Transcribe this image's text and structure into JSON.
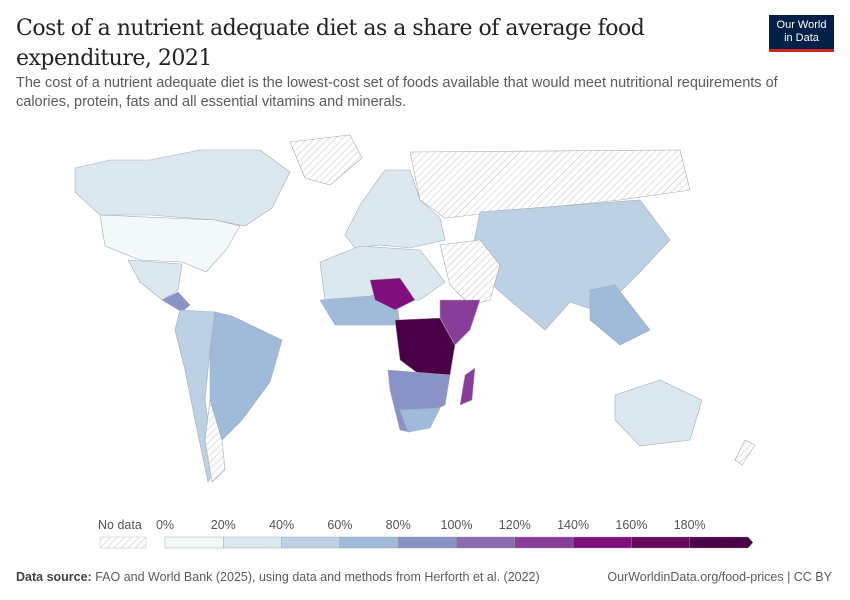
{
  "header": {
    "title": "Cost of a nutrient adequate diet as a share of average food expenditure, 2021",
    "subtitle": "The cost of a nutrient adequate diet is the lowest-cost set of foods available that would meet nutritional requirements of calories, protein, fats and all essential vitamins and minerals.",
    "logo_line1": "Our World",
    "logo_line2": "in Data"
  },
  "legend": {
    "no_data_label": "No data",
    "ticks": [
      "0%",
      "20%",
      "40%",
      "60%",
      "80%",
      "100%",
      "120%",
      "140%",
      "160%",
      "180%"
    ],
    "bins": [
      {
        "range": "0-20%",
        "color": "#f3f8f9"
      },
      {
        "range": "20-40%",
        "color": "#dce8f0"
      },
      {
        "range": "40-60%",
        "color": "#bdd1e4"
      },
      {
        "range": "60-80%",
        "color": "#9fbbd9"
      },
      {
        "range": "80-100%",
        "color": "#8a93c5"
      },
      {
        "range": "100-120%",
        "color": "#8d69ad"
      },
      {
        "range": "120-140%",
        "color": "#883d98"
      },
      {
        "range": "140-160%",
        "color": "#7f0f7c"
      },
      {
        "range": "160-180%",
        "color": "#66095b"
      },
      {
        "range": "180%+",
        "color": "#4a0046"
      }
    ]
  },
  "footer": {
    "source_label": "Data source:",
    "source_text": "FAO and World Bank (2025), using data and methods from Herforth et al. (2022)",
    "url_license": "OurWorldinData.org/food-prices | CC BY"
  }
}
